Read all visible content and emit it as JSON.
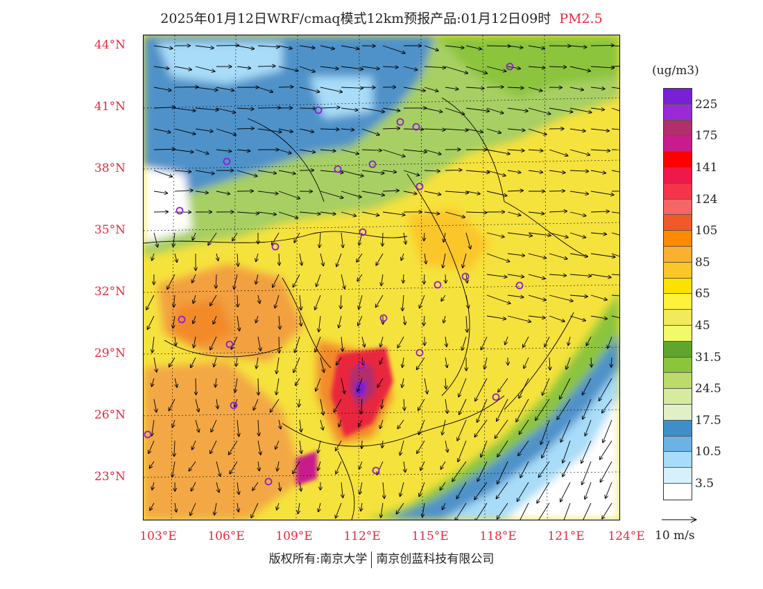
{
  "header": {
    "title": "2025年01月12日WRF/cmaq模式12km预报产品:01月12日09时",
    "pollutant": "PM2.5"
  },
  "axes": {
    "lat_labels": [
      "44°N",
      "41°N",
      "38°N",
      "35°N",
      "32°N",
      "29°N",
      "26°N",
      "23°N"
    ],
    "lon_labels": [
      "103°E",
      "106°E",
      "109°E",
      "112°E",
      "115°E",
      "118°E",
      "121°E",
      "124°E"
    ]
  },
  "legend": {
    "unit": "(ug/m3)",
    "colors": [
      "#7a1fd8",
      "#9a2ad8",
      "#b12f6a",
      "#c81c8c",
      "#ff0000",
      "#f01848",
      "#f5344c",
      "#f76666",
      "#f05a28",
      "#ff8a00",
      "#fbb030",
      "#fbc62a",
      "#ffe100",
      "#fff23a",
      "#f2ea5a",
      "#f1fa6a",
      "#5fa62e",
      "#8cc43c",
      "#bcdc6a",
      "#d6eaa0",
      "#e2f0c8",
      "#3e8fc8",
      "#6cb2e4",
      "#a8dcf8",
      "#d8f0fc",
      "#ffffff"
    ],
    "labels": [
      "225",
      "175",
      "141",
      "124",
      "105",
      "85",
      "65",
      "45",
      "31.5",
      "24.5",
      "17.5",
      "10.5",
      "3.5"
    ]
  },
  "wind_reference": {
    "label": "10 m/s"
  },
  "footer": {
    "copyright_left": "版权所有:南京大学",
    "copyright_right": "南京创蓝科技有限公司"
  }
}
